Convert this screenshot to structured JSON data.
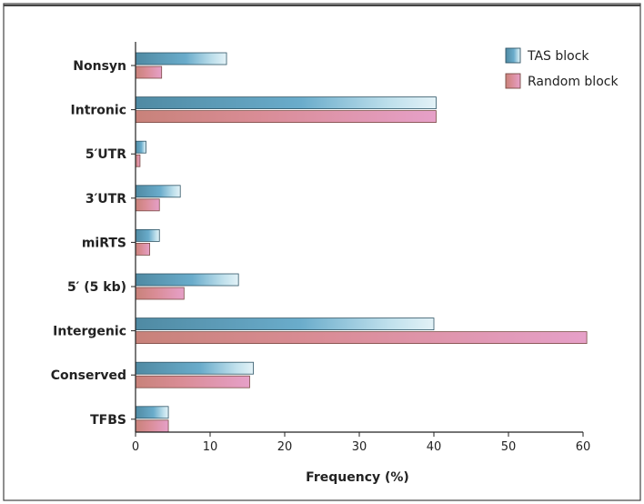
{
  "chart_data": {
    "type": "bar",
    "orientation": "horizontal",
    "categories": [
      "Nonsyn",
      "Intronic",
      "5′UTR",
      "3′UTR",
      "miRTS",
      "5′ (5 kb)",
      "Intergenic",
      "Conserved",
      "TFBS"
    ],
    "series": [
      {
        "name": "TAS block",
        "values": [
          12.2,
          40.3,
          1.4,
          6.0,
          3.2,
          13.8,
          40.0,
          15.8,
          4.4
        ]
      },
      {
        "name": "Random block",
        "values": [
          3.5,
          40.3,
          0.6,
          3.2,
          1.9,
          6.5,
          60.5,
          15.3,
          4.4
        ]
      }
    ],
    "xlabel": "Frequency (%)",
    "ylabel": "",
    "xlim": [
      0,
      60
    ],
    "xticks": [
      "0",
      "10",
      "20",
      "30",
      "40",
      "50",
      "60"
    ],
    "grid": false,
    "legend_position": "top-right",
    "colors": {
      "TAS block": "#5b8fa6",
      "Random block": "#d98f84"
    }
  }
}
